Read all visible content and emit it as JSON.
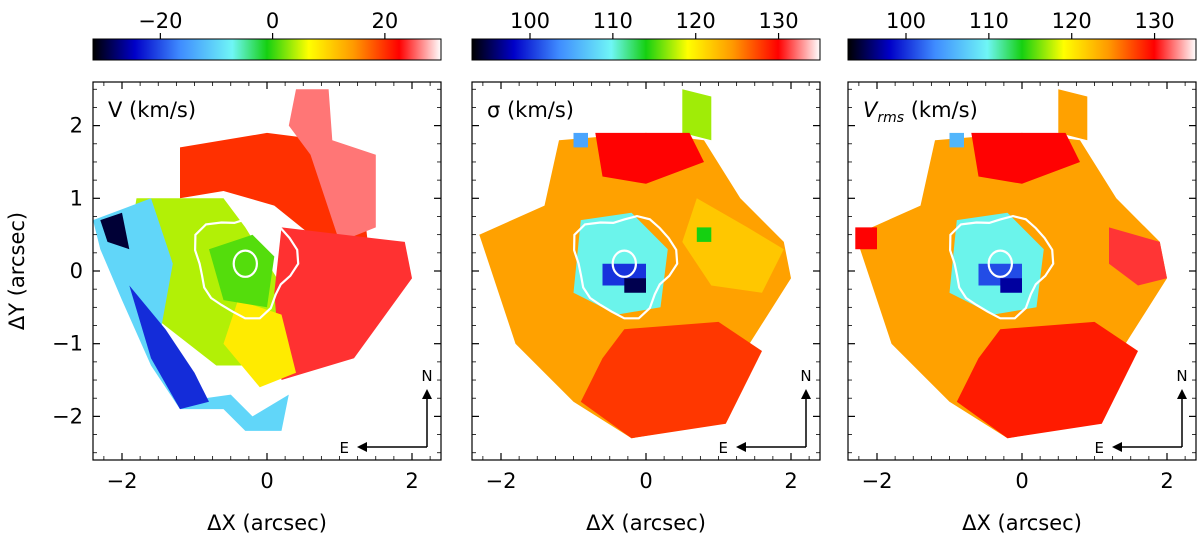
{
  "chart_data": [
    {
      "type": "heatmap",
      "title": "V (km/s)",
      "xlabel": "ΔX (arcsec)",
      "ylabel": "ΔY (arcsec)",
      "xlim": [
        -2.4,
        2.4
      ],
      "ylim": [
        -2.6,
        2.6
      ],
      "x_ticks": [
        "−2",
        "0",
        "2"
      ],
      "y_ticks": [
        "2",
        "1",
        "0",
        "−1",
        "−2"
      ],
      "colorbar": {
        "range": [
          -32,
          30
        ],
        "ticks": [
          "−20",
          "0",
          "20"
        ]
      },
      "compass": {
        "north": "N",
        "east": "E"
      },
      "regions": [
        {
          "value": 20,
          "poly": [
            [
              -1.2,
              1.7
            ],
            [
              0.0,
              1.9
            ],
            [
              0.8,
              1.8
            ],
            [
              1.3,
              1.2
            ],
            [
              1.4,
              0.3
            ],
            [
              0.6,
              0.5
            ],
            [
              0.1,
              0.9
            ],
            [
              -0.6,
              1.1
            ],
            [
              -1.2,
              1.0
            ]
          ]
        },
        {
          "value": 26,
          "poly": [
            [
              0.4,
              2.5
            ],
            [
              0.85,
              2.5
            ],
            [
              0.9,
              1.8
            ],
            [
              1.5,
              1.6
            ],
            [
              1.5,
              0.6
            ],
            [
              1.0,
              0.4
            ],
            [
              0.6,
              1.6
            ],
            [
              0.3,
              2.0
            ]
          ]
        },
        {
          "value": 4,
          "poly": [
            [
              -1.8,
              1.0
            ],
            [
              -0.6,
              1.0
            ],
            [
              -0.3,
              0.6
            ],
            [
              0.2,
              -0.2
            ],
            [
              0.1,
              -1.3
            ],
            [
              -0.7,
              -1.3
            ],
            [
              -1.6,
              -0.6
            ],
            [
              -1.9,
              0.4
            ]
          ]
        },
        {
          "value": 24,
          "poly": [
            [
              0.2,
              0.6
            ],
            [
              1.9,
              0.4
            ],
            [
              2.0,
              -0.1
            ],
            [
              1.2,
              -1.2
            ],
            [
              0.2,
              -1.5
            ],
            [
              0.1,
              -0.3
            ]
          ]
        },
        {
          "value": 8,
          "poly": [
            [
              -0.4,
              -0.4
            ],
            [
              0.2,
              -0.6
            ],
            [
              0.4,
              -1.4
            ],
            [
              -0.1,
              -1.6
            ],
            [
              -0.6,
              -1.0
            ]
          ]
        },
        {
          "value": -10,
          "poly": [
            [
              -2.4,
              0.7
            ],
            [
              -1.6,
              1.0
            ],
            [
              -1.3,
              0.1
            ],
            [
              -1.5,
              -1.0
            ],
            [
              -1.2,
              -1.8
            ],
            [
              -0.5,
              -1.7
            ],
            [
              -0.2,
              -2.0
            ],
            [
              0.3,
              -1.7
            ],
            [
              0.2,
              -2.2
            ],
            [
              -0.3,
              -2.2
            ],
            [
              -0.6,
              -1.9
            ],
            [
              -1.2,
              -1.9
            ],
            [
              -1.6,
              -1.3
            ],
            [
              -2.0,
              -0.4
            ],
            [
              -2.3,
              0.3
            ]
          ]
        },
        {
          "value": -22,
          "poly": [
            [
              -1.9,
              -0.2
            ],
            [
              -1.4,
              -0.8
            ],
            [
              -1.0,
              -1.4
            ],
            [
              -0.8,
              -1.8
            ],
            [
              -1.2,
              -1.9
            ],
            [
              -1.6,
              -1.2
            ]
          ]
        },
        {
          "value": -30,
          "poly": [
            [
              -2.3,
              0.7
            ],
            [
              -2.0,
              0.8
            ],
            [
              -1.9,
              0.3
            ],
            [
              -2.2,
              0.4
            ]
          ]
        },
        {
          "value": 1,
          "poly": [
            [
              -0.8,
              0.3
            ],
            [
              -0.2,
              0.5
            ],
            [
              0.1,
              0.2
            ],
            [
              0.0,
              -0.5
            ],
            [
              -0.6,
              -0.4
            ]
          ]
        }
      ]
    },
    {
      "type": "heatmap",
      "title": "σ (km/s)",
      "xlabel": "ΔX (arcsec)",
      "ylabel": "",
      "xlim": [
        -2.4,
        2.4
      ],
      "ylim": [
        -2.6,
        2.6
      ],
      "x_ticks": [
        "−2",
        "0",
        "2"
      ],
      "y_ticks": [],
      "colorbar": {
        "range": [
          93,
          135
        ],
        "ticks": [
          "100",
          "110",
          "120",
          "130"
        ]
      },
      "compass": {
        "north": "N",
        "east": "E"
      },
      "regions": [
        {
          "value": 124,
          "poly": [
            [
              -1.2,
              1.8
            ],
            [
              0.0,
              1.9
            ],
            [
              0.8,
              1.8
            ],
            [
              1.3,
              1.0
            ],
            [
              1.9,
              0.4
            ],
            [
              2.0,
              -0.1
            ],
            [
              1.3,
              -1.2
            ],
            [
              1.0,
              -2.1
            ],
            [
              -0.2,
              -2.3
            ],
            [
              -1.0,
              -1.8
            ],
            [
              -1.8,
              -1.0
            ],
            [
              -2.3,
              0.5
            ],
            [
              -1.4,
              0.9
            ]
          ]
        },
        {
          "value": 117,
          "poly": [
            [
              0.5,
              2.5
            ],
            [
              0.9,
              2.4
            ],
            [
              0.9,
              1.8
            ],
            [
              0.5,
              1.9
            ]
          ]
        },
        {
          "value": 130,
          "poly": [
            [
              -0.7,
              1.9
            ],
            [
              0.6,
              1.9
            ],
            [
              0.8,
              1.5
            ],
            [
              0.0,
              1.2
            ],
            [
              -0.6,
              1.3
            ]
          ]
        },
        {
          "value": 128,
          "poly": [
            [
              -0.3,
              -0.8
            ],
            [
              1.0,
              -0.7
            ],
            [
              1.6,
              -1.1
            ],
            [
              1.1,
              -2.1
            ],
            [
              -0.2,
              -2.3
            ],
            [
              -0.9,
              -1.8
            ],
            [
              -0.6,
              -1.2
            ]
          ]
        },
        {
          "value": 122,
          "poly": [
            [
              0.7,
              1.0
            ],
            [
              1.4,
              0.6
            ],
            [
              1.9,
              0.3
            ],
            [
              1.6,
              -0.3
            ],
            [
              0.9,
              -0.2
            ],
            [
              0.5,
              0.4
            ]
          ]
        },
        {
          "value": 110,
          "poly": [
            [
              -0.9,
              0.7
            ],
            [
              -0.2,
              0.8
            ],
            [
              0.3,
              0.3
            ],
            [
              0.2,
              -0.5
            ],
            [
              -0.4,
              -0.6
            ],
            [
              -1.0,
              -0.3
            ]
          ]
        },
        {
          "value": 100,
          "poly": [
            [
              -0.6,
              0.1
            ],
            [
              0.0,
              0.1
            ],
            [
              0.0,
              -0.2
            ],
            [
              -0.6,
              -0.2
            ]
          ]
        },
        {
          "value": 95,
          "poly": [
            [
              -0.3,
              -0.1
            ],
            [
              0.0,
              -0.1
            ],
            [
              0.0,
              -0.3
            ],
            [
              -0.3,
              -0.3
            ]
          ]
        },
        {
          "value": 105,
          "poly": [
            [
              -1.0,
              1.9
            ],
            [
              -0.8,
              1.9
            ],
            [
              -0.8,
              1.7
            ],
            [
              -1.0,
              1.7
            ]
          ]
        },
        {
          "value": 114,
          "poly": [
            [
              0.7,
              0.6
            ],
            [
              0.9,
              0.6
            ],
            [
              0.9,
              0.4
            ],
            [
              0.7,
              0.4
            ]
          ]
        }
      ]
    },
    {
      "type": "heatmap",
      "title": "V_rms (km/s)",
      "xlabel": "ΔX (arcsec)",
      "ylabel": "",
      "xlim": [
        -2.4,
        2.4
      ],
      "ylim": [
        -2.6,
        2.6
      ],
      "x_ticks": [
        "−2",
        "0",
        "2"
      ],
      "y_ticks": [],
      "colorbar": {
        "range": [
          93,
          135
        ],
        "ticks": [
          "100",
          "110",
          "120",
          "130"
        ]
      },
      "compass": {
        "north": "N",
        "east": "E"
      },
      "regions": [
        {
          "value": 124,
          "poly": [
            [
              -1.2,
              1.8
            ],
            [
              0.0,
              1.9
            ],
            [
              0.8,
              1.8
            ],
            [
              1.3,
              1.0
            ],
            [
              1.9,
              0.4
            ],
            [
              2.0,
              -0.1
            ],
            [
              1.3,
              -1.2
            ],
            [
              1.0,
              -2.1
            ],
            [
              -0.2,
              -2.3
            ],
            [
              -1.0,
              -1.8
            ],
            [
              -1.8,
              -1.0
            ],
            [
              -2.3,
              0.5
            ],
            [
              -1.4,
              0.9
            ]
          ]
        },
        {
          "value": 124,
          "poly": [
            [
              0.5,
              2.5
            ],
            [
              0.9,
              2.4
            ],
            [
              0.9,
              1.8
            ],
            [
              0.5,
              1.9
            ]
          ]
        },
        {
          "value": 130,
          "poly": [
            [
              -0.7,
              1.9
            ],
            [
              0.6,
              1.9
            ],
            [
              0.8,
              1.5
            ],
            [
              0.0,
              1.2
            ],
            [
              -0.6,
              1.3
            ]
          ]
        },
        {
          "value": 129,
          "poly": [
            [
              -0.3,
              -0.8
            ],
            [
              1.0,
              -0.7
            ],
            [
              1.6,
              -1.1
            ],
            [
              1.1,
              -2.1
            ],
            [
              -0.2,
              -2.3
            ],
            [
              -0.9,
              -1.8
            ],
            [
              -0.6,
              -1.2
            ]
          ]
        },
        {
          "value": 131,
          "poly": [
            [
              1.2,
              0.6
            ],
            [
              1.9,
              0.4
            ],
            [
              2.0,
              -0.1
            ],
            [
              1.6,
              -0.2
            ],
            [
              1.2,
              0.1
            ]
          ]
        },
        {
          "value": 110,
          "poly": [
            [
              -0.9,
              0.7
            ],
            [
              -0.2,
              0.8
            ],
            [
              0.3,
              0.3
            ],
            [
              0.2,
              -0.5
            ],
            [
              -0.4,
              -0.6
            ],
            [
              -1.0,
              -0.3
            ]
          ]
        },
        {
          "value": 101,
          "poly": [
            [
              -0.6,
              0.1
            ],
            [
              0.0,
              0.1
            ],
            [
              0.0,
              -0.2
            ],
            [
              -0.6,
              -0.2
            ]
          ]
        },
        {
          "value": 97,
          "poly": [
            [
              -0.3,
              -0.1
            ],
            [
              0.0,
              -0.1
            ],
            [
              0.0,
              -0.3
            ],
            [
              -0.3,
              -0.3
            ]
          ]
        },
        {
          "value": 106,
          "poly": [
            [
              -1.0,
              1.9
            ],
            [
              -0.8,
              1.9
            ],
            [
              -0.8,
              1.7
            ],
            [
              -1.0,
              1.7
            ]
          ]
        },
        {
          "value": 130,
          "poly": [
            [
              -2.3,
              0.6
            ],
            [
              -2.0,
              0.6
            ],
            [
              -2.0,
              0.3
            ],
            [
              -2.3,
              0.3
            ]
          ]
        }
      ]
    }
  ]
}
